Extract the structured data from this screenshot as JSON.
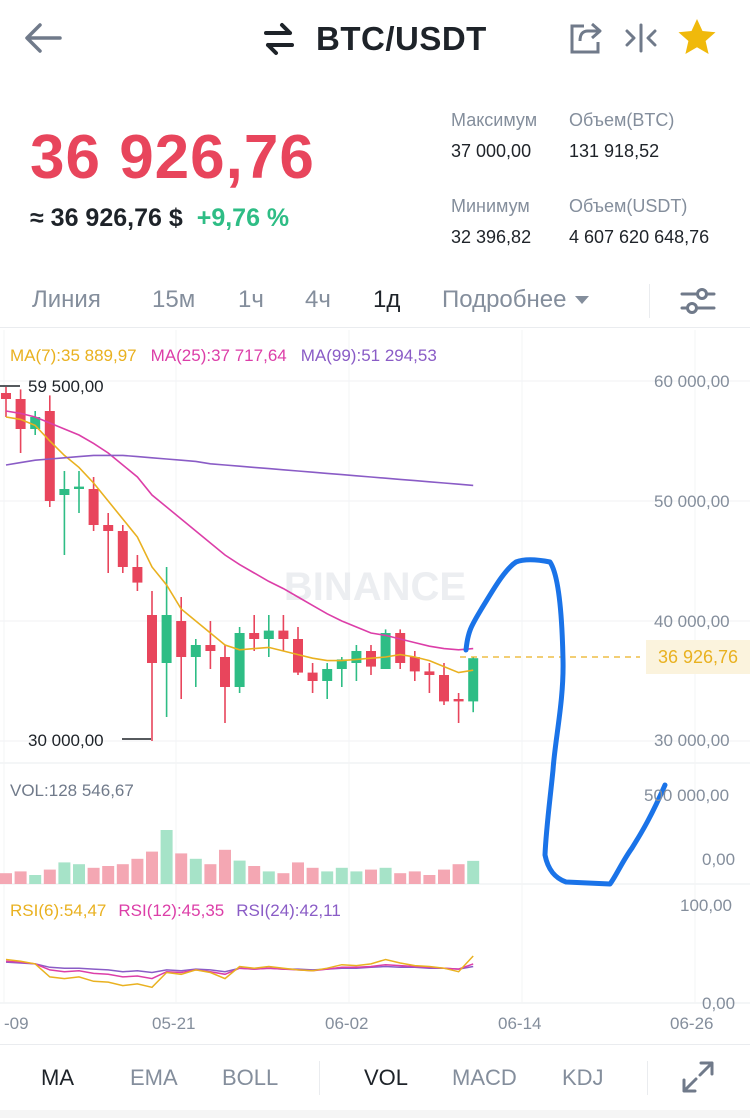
{
  "header": {
    "pair": "BTC/USDT",
    "icons": [
      "back-arrow-icon",
      "swap-icon",
      "share-icon",
      "compare-icon",
      "star-icon"
    ]
  },
  "price": {
    "last": "36 926,76",
    "approx_usd": "≈ 36 926,76 $",
    "change": "+9,76 %"
  },
  "stats": {
    "high_label": "Максимум",
    "high_value": "37 000,00",
    "vol_btc_label": "Объем(BTC)",
    "vol_btc_value": "131 918,52",
    "low_label": "Минимум",
    "low_value": "32 396,82",
    "vol_usdt_label": "Объем(USDT)",
    "vol_usdt_value": "4 607 620 648,76"
  },
  "interval_tabs": {
    "line": "Линия",
    "m15": "15м",
    "h1": "1ч",
    "h4": "4ч",
    "d1": "1д",
    "more": "Подробнее",
    "active": "1д"
  },
  "chart": {
    "ma7": "MA(7):35 889,97",
    "ma25": "MA(25):37 717,64",
    "ma99": "MA(99):51 294,53",
    "price_axis": [
      "60 000,00",
      "50 000,00",
      "40 000,00",
      "30 000,00"
    ],
    "current_price_tag": "36 926,76",
    "high_marker": "59 500,00",
    "low_marker": "30 000,00",
    "watermark": "BINANCE",
    "vol_label": "VOL:128 546,67",
    "vol_axis": [
      "500 000,00",
      "0,00"
    ],
    "rsi6": "RSI(6):54,47",
    "rsi12": "RSI(12):45,35",
    "rsi24": "RSI(24):42,11",
    "rsi_axis": [
      "100,00",
      "0,00"
    ],
    "dates": [
      "-09",
      "05-21",
      "06-02",
      "06-14",
      "06-26"
    ]
  },
  "chart_data": {
    "type": "candlestick",
    "candles": [
      {
        "o": 59000,
        "h": 59500,
        "l": 57000,
        "c": 58500
      },
      {
        "o": 58500,
        "h": 59300,
        "l": 54000,
        "c": 56000
      },
      {
        "o": 56000,
        "h": 57500,
        "l": 55500,
        "c": 57000
      },
      {
        "o": 57500,
        "h": 58800,
        "l": 49500,
        "c": 50000
      },
      {
        "o": 50500,
        "h": 52500,
        "l": 45500,
        "c": 51000
      },
      {
        "o": 51000,
        "h": 52500,
        "l": 49000,
        "c": 51200
      },
      {
        "o": 51000,
        "h": 52000,
        "l": 47500,
        "c": 48000
      },
      {
        "o": 48000,
        "h": 49000,
        "l": 44000,
        "c": 47500
      },
      {
        "o": 47500,
        "h": 48000,
        "l": 44000,
        "c": 44500
      },
      {
        "o": 44500,
        "h": 45500,
        "l": 42500,
        "c": 43200
      },
      {
        "o": 40500,
        "h": 42500,
        "l": 30000,
        "c": 36500
      },
      {
        "o": 36500,
        "h": 44500,
        "l": 32000,
        "c": 40500
      },
      {
        "o": 40000,
        "h": 42000,
        "l": 33500,
        "c": 37000
      },
      {
        "o": 37000,
        "h": 38500,
        "l": 34500,
        "c": 38000
      },
      {
        "o": 38000,
        "h": 40000,
        "l": 36000,
        "c": 37500
      },
      {
        "o": 37000,
        "h": 38000,
        "l": 31500,
        "c": 34500
      },
      {
        "o": 34500,
        "h": 39500,
        "l": 34000,
        "c": 39000
      },
      {
        "o": 39000,
        "h": 40500,
        "l": 37500,
        "c": 38500
      },
      {
        "o": 38500,
        "h": 40500,
        "l": 37000,
        "c": 39200
      },
      {
        "o": 39200,
        "h": 40500,
        "l": 37500,
        "c": 38500
      },
      {
        "o": 38500,
        "h": 39500,
        "l": 35500,
        "c": 35700
      },
      {
        "o": 35700,
        "h": 36500,
        "l": 34000,
        "c": 35000
      },
      {
        "o": 35000,
        "h": 36500,
        "l": 33500,
        "c": 36000
      },
      {
        "o": 36000,
        "h": 37000,
        "l": 34500,
        "c": 36800
      },
      {
        "o": 36500,
        "h": 38000,
        "l": 35000,
        "c": 37500
      },
      {
        "o": 37500,
        "h": 38000,
        "l": 35500,
        "c": 36200
      },
      {
        "o": 36000,
        "h": 39300,
        "l": 36000,
        "c": 39000
      },
      {
        "o": 39000,
        "h": 39300,
        "l": 36000,
        "c": 36500
      },
      {
        "o": 37000,
        "h": 37500,
        "l": 35000,
        "c": 35800
      },
      {
        "o": 35800,
        "h": 36500,
        "l": 34000,
        "c": 35500
      },
      {
        "o": 35500,
        "h": 36500,
        "l": 33000,
        "c": 33300
      },
      {
        "o": 33500,
        "h": 34000,
        "l": 31500,
        "c": 33300
      },
      {
        "o": 33300,
        "h": 37000,
        "l": 32400,
        "c": 36900
      }
    ],
    "ma7": [
      57000,
      56800,
      56300,
      55000,
      53800,
      52800,
      51500,
      50000,
      48500,
      47000,
      44500,
      43000,
      41000,
      40000,
      39000,
      38000,
      37600,
      37700,
      37800,
      37500,
      37200,
      36900,
      36700,
      36700,
      36800,
      36900,
      37000,
      37200,
      37000,
      36700,
      36200,
      35700,
      35900
    ],
    "ma25": [
      57500,
      57300,
      57000,
      56500,
      56000,
      55500,
      54800,
      54000,
      53000,
      52000,
      50500,
      49500,
      48500,
      47500,
      46500,
      45500,
      44700,
      44000,
      43300,
      42700,
      42000,
      41300,
      40600,
      40000,
      39500,
      39000,
      38800,
      38500,
      38200,
      37900,
      37700,
      37600,
      37700
    ],
    "ma99": [
      53000,
      53200,
      53400,
      53500,
      53600,
      53700,
      53800,
      53800,
      53800,
      53700,
      53600,
      53500,
      53400,
      53300,
      53100,
      53000,
      52900,
      52800,
      52700,
      52600,
      52500,
      52400,
      52300,
      52200,
      52100,
      52000,
      51900,
      51800,
      51700,
      51600,
      51500,
      51400,
      51300
    ],
    "volume": [
      60000,
      70000,
      50000,
      80000,
      120000,
      110000,
      90000,
      100000,
      110000,
      140000,
      180000,
      300000,
      170000,
      140000,
      110000,
      190000,
      130000,
      100000,
      70000,
      60000,
      120000,
      90000,
      70000,
      90000,
      70000,
      80000,
      90000,
      60000,
      70000,
      50000,
      80000,
      110000,
      128547
    ],
    "rsi6": [
      50,
      48,
      45,
      30,
      28,
      30,
      25,
      24,
      20,
      22,
      18,
      35,
      33,
      38,
      35,
      28,
      42,
      40,
      42,
      40,
      38,
      37,
      40,
      44,
      43,
      45,
      50,
      46,
      43,
      42,
      40,
      36,
      54
    ],
    "rsi12": [
      48,
      47,
      45,
      38,
      36,
      37,
      34,
      33,
      30,
      31,
      28,
      36,
      35,
      38,
      36,
      33,
      40,
      39,
      40,
      39,
      38,
      37,
      39,
      41,
      41,
      42,
      44,
      43,
      42,
      41,
      40,
      39,
      45
    ],
    "rsi24": [
      47,
      46,
      45,
      41,
      40,
      40,
      39,
      38,
      36,
      37,
      35,
      38,
      37,
      39,
      38,
      36,
      40,
      39,
      40,
      39,
      39,
      38,
      39,
      40,
      40,
      41,
      42,
      41,
      41,
      40,
      40,
      39,
      42
    ],
    "y_range": [
      30000,
      60000
    ],
    "current_price": 36926.76
  },
  "bottom_tabs": {
    "ma": "MA",
    "ema": "EMA",
    "boll": "BOLL",
    "vol": "VOL",
    "macd": "MACD",
    "kdj": "KDJ"
  },
  "colors": {
    "up": "#2ebd85",
    "down": "#e8455c",
    "ma7": "#e9b120",
    "ma25": "#dc3ea8",
    "ma99": "#8a5cc6",
    "annotation": "#1a73e8"
  }
}
